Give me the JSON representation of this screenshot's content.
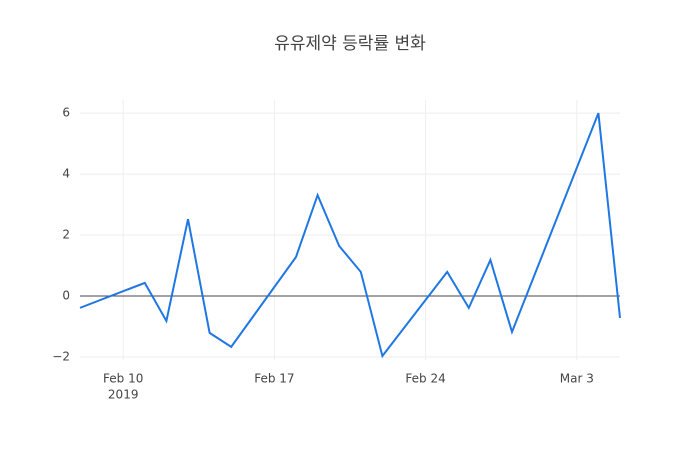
{
  "chart_data": {
    "type": "line",
    "title": "유유제약 등락률 변화",
    "x": [
      "2019-02-08",
      "2019-02-11",
      "2019-02-12",
      "2019-02-13",
      "2019-02-14",
      "2019-02-15",
      "2019-02-18",
      "2019-02-19",
      "2019-02-20",
      "2019-02-21",
      "2019-02-22",
      "2019-02-25",
      "2019-02-26",
      "2019-02-27",
      "2019-02-28",
      "2019-03-04",
      "2019-03-05"
    ],
    "series": [
      {
        "color": "#1f77e4",
        "values": [
          -0.39,
          0.43,
          -0.82,
          2.52,
          -1.21,
          -1.67,
          1.28,
          3.31,
          1.64,
          0.79,
          -1.97,
          0.79,
          -0.39,
          1.18,
          -1.18,
          6.0,
          -0.72
        ]
      }
    ],
    "xlim": [
      "2019-02-08",
      "2019-03-05"
    ],
    "xticks": [
      {
        "value": "2019-02-10",
        "label": "Feb 10"
      },
      {
        "value": "2019-02-17",
        "label": "Feb 17"
      },
      {
        "value": "2019-02-24",
        "label": "Feb 24"
      },
      {
        "value": "2019-03-03",
        "label": "Mar 3"
      }
    ],
    "x_year_label": "2019",
    "ylim": [
      -2.1,
      6.43
    ],
    "yticks": [
      {
        "value": -2,
        "label": "−2"
      },
      0,
      2,
      4,
      6
    ],
    "grid": true,
    "zero_line": true
  }
}
